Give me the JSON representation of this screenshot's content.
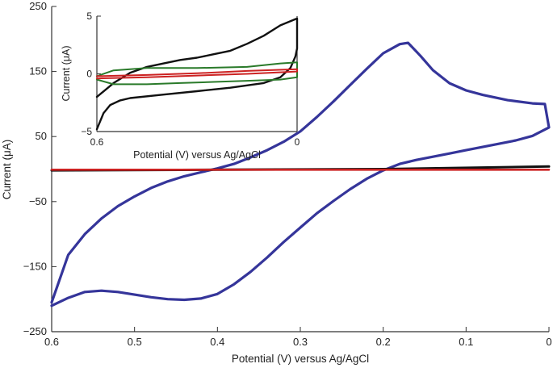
{
  "chart_data": [
    {
      "type": "line",
      "title": "",
      "xlabel": "Potential (V) versus Ag/AgCl",
      "ylabel": "Current (μA)",
      "xlim": [
        0.6,
        0
      ],
      "ylim": [
        -250,
        250
      ],
      "x_reversed": true,
      "grid": false,
      "xticks": [
        0.6,
        0.5,
        0.4,
        0.3,
        0.2,
        0.1,
        0
      ],
      "xtick_labels": [
        "0.6",
        "0.5",
        "0.4",
        "0.3",
        "0.2",
        "0.1",
        "0"
      ],
      "yticks": [
        250,
        150,
        50,
        -50,
        -150,
        -250
      ],
      "ytick_labels": [
        "250",
        "150",
        "50",
        "−50",
        "−150",
        "−250"
      ],
      "series": [
        {
          "color": "#35359a",
          "points": [
            [
              0.6,
              -210
            ],
            [
              0.58,
              -198
            ],
            [
              0.56,
              -189
            ],
            [
              0.54,
              -187
            ],
            [
              0.52,
              -189
            ],
            [
              0.5,
              -193
            ],
            [
              0.48,
              -197
            ],
            [
              0.46,
              -200
            ],
            [
              0.44,
              -201
            ],
            [
              0.42,
              -199
            ],
            [
              0.4,
              -192
            ],
            [
              0.38,
              -177
            ],
            [
              0.36,
              -158
            ],
            [
              0.34,
              -136
            ],
            [
              0.32,
              -112
            ],
            [
              0.3,
              -90
            ],
            [
              0.28,
              -68
            ],
            [
              0.26,
              -49
            ],
            [
              0.24,
              -31
            ],
            [
              0.22,
              -15
            ],
            [
              0.2,
              -2
            ],
            [
              0.18,
              8
            ],
            [
              0.16,
              14
            ],
            [
              0.14,
              19
            ],
            [
              0.12,
              24
            ],
            [
              0.1,
              29
            ],
            [
              0.08,
              34
            ],
            [
              0.06,
              39
            ],
            [
              0.04,
              44
            ],
            [
              0.02,
              51
            ],
            [
              0,
              64
            ],
            [
              0.005,
              100
            ],
            [
              0.02,
              101
            ],
            [
              0.05,
              106
            ],
            [
              0.08,
              114
            ],
            [
              0.1,
              121
            ],
            [
              0.12,
              132
            ],
            [
              0.14,
              152
            ],
            [
              0.155,
              174
            ],
            [
              0.17,
              194
            ],
            [
              0.18,
              192
            ],
            [
              0.2,
              178
            ],
            [
              0.22,
              154
            ],
            [
              0.24,
              129
            ],
            [
              0.26,
              104
            ],
            [
              0.28,
              80
            ],
            [
              0.3,
              58
            ],
            [
              0.32,
              42
            ],
            [
              0.34,
              29
            ],
            [
              0.36,
              18
            ],
            [
              0.38,
              8
            ],
            [
              0.4,
              1
            ],
            [
              0.42,
              -5
            ],
            [
              0.44,
              -11
            ],
            [
              0.46,
              -19
            ],
            [
              0.48,
              -29
            ],
            [
              0.5,
              -42
            ],
            [
              0.52,
              -57
            ],
            [
              0.54,
              -76
            ],
            [
              0.56,
              -100
            ],
            [
              0.58,
              -132
            ],
            [
              0.6,
              -205
            ]
          ]
        },
        {
          "color": "#111111",
          "points": [
            [
              0.6,
              -2
            ],
            [
              0.4,
              -1
            ],
            [
              0.2,
              0
            ],
            [
              0,
              4
            ]
          ]
        },
        {
          "color": "#cc2222",
          "points": [
            [
              0.6,
              -1
            ],
            [
              0.3,
              -1
            ],
            [
              0,
              -1
            ]
          ]
        }
      ]
    },
    {
      "type": "line",
      "title": "",
      "xlabel": "Potential (V) versus Ag/AgCl",
      "ylabel": "Current (μA)",
      "xlim": [
        0.6,
        0
      ],
      "ylim": [
        -5,
        5
      ],
      "x_reversed": true,
      "grid": false,
      "xticks": [
        0.6,
        0
      ],
      "xtick_labels": [
        "0.6",
        "0"
      ],
      "yticks": [
        5,
        0,
        -5
      ],
      "ytick_labels": [
        "5",
        "0",
        "−5"
      ],
      "series": [
        {
          "color": "#111111",
          "points": [
            [
              0.6,
              -4.8
            ],
            [
              0.58,
              -3.4
            ],
            [
              0.56,
              -2.7
            ],
            [
              0.53,
              -2.3
            ],
            [
              0.5,
              -2.1
            ],
            [
              0.4,
              -1.8
            ],
            [
              0.3,
              -1.5
            ],
            [
              0.2,
              -1.2
            ],
            [
              0.1,
              -0.8
            ],
            [
              0.05,
              -0.3
            ],
            [
              0.02,
              0.5
            ],
            [
              0.005,
              1.5
            ],
            [
              0,
              2.2
            ],
            [
              0,
              4.8
            ],
            [
              0.05,
              4.2
            ],
            [
              0.1,
              3.3
            ],
            [
              0.15,
              2.6
            ],
            [
              0.2,
              2.0
            ],
            [
              0.25,
              1.7
            ],
            [
              0.3,
              1.4
            ],
            [
              0.35,
              1.2
            ],
            [
              0.4,
              0.9
            ],
            [
              0.45,
              0.6
            ],
            [
              0.5,
              0.1
            ],
            [
              0.55,
              -0.8
            ],
            [
              0.6,
              -2.0
            ]
          ]
        },
        {
          "color": "#2a7a2a",
          "points": [
            [
              0.6,
              -0.5
            ],
            [
              0.55,
              -0.9
            ],
            [
              0.45,
              -0.9
            ],
            [
              0.35,
              -0.8
            ],
            [
              0.25,
              -0.7
            ],
            [
              0.15,
              -0.6
            ],
            [
              0.05,
              -0.5
            ],
            [
              0,
              -0.3
            ],
            [
              0,
              1.0
            ],
            [
              0.05,
              0.9
            ],
            [
              0.15,
              0.6
            ],
            [
              0.3,
              0.5
            ],
            [
              0.45,
              0.5
            ],
            [
              0.55,
              0.3
            ],
            [
              0.6,
              -0.2
            ]
          ]
        },
        {
          "color": "#cc2222",
          "points": [
            [
              0.6,
              -0.4
            ],
            [
              0.45,
              -0.3
            ],
            [
              0.3,
              -0.15
            ],
            [
              0.15,
              0
            ],
            [
              0,
              0.2
            ],
            [
              0,
              0.4
            ],
            [
              0.15,
              0.25
            ],
            [
              0.3,
              0.05
            ],
            [
              0.45,
              -0.1
            ],
            [
              0.6,
              -0.2
            ]
          ]
        }
      ]
    }
  ]
}
